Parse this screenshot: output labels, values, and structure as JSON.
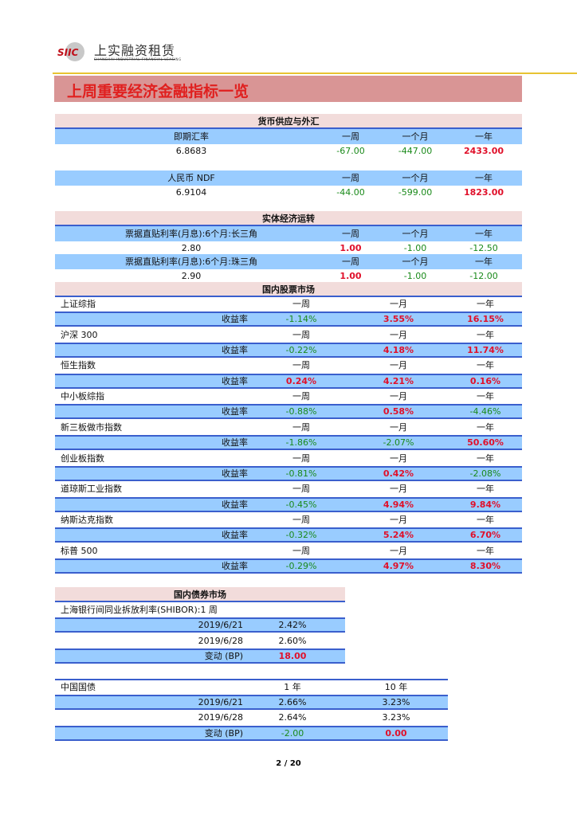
{
  "header": {
    "logo_text": "上实融资租赁",
    "logo_en": "SHANGHAI INDUSTRIAL FINANCIAL LEASING",
    "logo_mark": "SIIC"
  },
  "title": "上周重要经济金融指标一览",
  "colors": {
    "positive": "#e0102a",
    "negative": "#1a8a1a",
    "row_blue": "#99ccff",
    "section_pink": "#f2dcdb",
    "banner": "#d99595"
  },
  "money": {
    "title": "货币供应与外汇",
    "items": [
      {
        "label": "即期汇率",
        "value": "6.8683",
        "cols": [
          "一周",
          "一个月",
          "一年"
        ],
        "changes": [
          "-67.00",
          "-447.00",
          "2433.00"
        ]
      },
      {
        "label": "人民币 NDF",
        "value": "6.9104",
        "cols": [
          "一周",
          "一个月",
          "一年"
        ],
        "changes": [
          "-44.00",
          "-599.00",
          "1823.00"
        ]
      }
    ]
  },
  "real": {
    "title": "实体经济运转",
    "items": [
      {
        "label": "票据直贴利率(月息):6个月:长三角",
        "value": "2.80",
        "cols": [
          "一周",
          "一个月",
          "一年"
        ],
        "changes": [
          "1.00",
          "-1.00",
          "-12.50"
        ]
      },
      {
        "label": "票据直贴利率(月息):6个月:珠三角",
        "value": "2.90",
        "cols": [
          "一周",
          "一个月",
          "一年"
        ],
        "changes": [
          "1.00",
          "-1.00",
          "-12.00"
        ]
      }
    ]
  },
  "stocks": {
    "title": "国内股票市场",
    "cols": [
      "一周",
      "一月",
      "一年"
    ],
    "rate_label": "收益率",
    "items": [
      {
        "name": "上证综指",
        "returns": [
          "-1.14%",
          "3.55%",
          "16.15%"
        ]
      },
      {
        "name": "沪深 300",
        "returns": [
          "-0.22%",
          "4.18%",
          "11.74%"
        ]
      },
      {
        "name": "恒生指数",
        "returns": [
          "0.24%",
          "4.21%",
          "0.16%"
        ]
      },
      {
        "name": "中小板综指",
        "returns": [
          "-0.88%",
          "0.58%",
          "-4.46%"
        ]
      },
      {
        "name": "新三板做市指数",
        "returns": [
          "-1.86%",
          "-2.07%",
          "50.60%"
        ]
      },
      {
        "name": "创业板指数",
        "returns": [
          "-0.81%",
          "0.42%",
          "-2.08%"
        ]
      },
      {
        "name": "道琼斯工业指数",
        "returns": [
          "-0.45%",
          "4.94%",
          "9.84%"
        ]
      },
      {
        "name": "纳斯达克指数",
        "returns": [
          "-0.32%",
          "5.24%",
          "6.70%"
        ]
      },
      {
        "name": "标普 500",
        "returns": [
          "-0.29%",
          "4.97%",
          "8.30%"
        ]
      }
    ]
  },
  "bonds": {
    "title": "国内债券市场",
    "shibor": {
      "label": "上海银行间同业拆放利率(SHIBOR):1 周",
      "rows": [
        {
          "date": "2019/6/21",
          "value": "2.42%"
        },
        {
          "date": "2019/6/28",
          "value": "2.60%"
        },
        {
          "date": "变动 (BP)",
          "value": "18.00"
        }
      ]
    },
    "treasury": {
      "label": "中国国债",
      "cols": [
        "1 年",
        "10 年"
      ],
      "rows": [
        {
          "date": "2019/6/21",
          "values": [
            "2.66%",
            "3.23%"
          ]
        },
        {
          "date": "2019/6/28",
          "values": [
            "2.64%",
            "3.23%"
          ]
        },
        {
          "date": "变动 (BP)",
          "values": [
            "-2.00",
            "0.00"
          ]
        }
      ]
    }
  },
  "page_number": "2 / 20"
}
